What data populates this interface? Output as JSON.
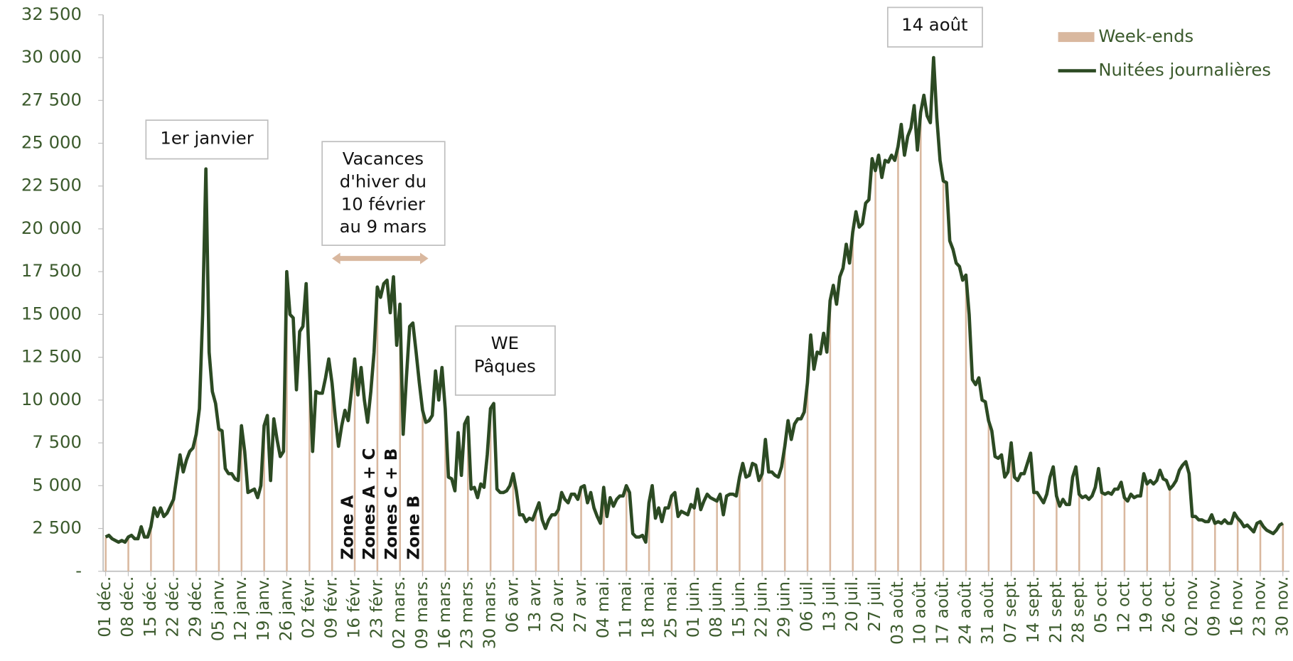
{
  "chart_data": {
    "type": "line",
    "categories": [
      "01 déc.",
      null,
      null,
      null,
      null,
      null,
      null,
      "08 déc.",
      null,
      null,
      null,
      null,
      null,
      null,
      "15 déc.",
      null,
      null,
      null,
      null,
      null,
      null,
      "22 déc.",
      null,
      null,
      null,
      null,
      null,
      null,
      "29 déc.",
      null,
      null,
      null,
      null,
      null,
      null,
      "05 janv.",
      null,
      null,
      null,
      null,
      null,
      null,
      "12 janv.",
      null,
      null,
      null,
      null,
      null,
      null,
      "19 janv.",
      null,
      null,
      null,
      null,
      null,
      null,
      "26 janv.",
      null,
      null,
      null,
      null,
      null,
      null,
      "02 févr.",
      null,
      null,
      null,
      null,
      null,
      null,
      "09 févr.",
      null,
      null,
      null,
      null,
      null,
      null,
      "16 févr.",
      null,
      null,
      null,
      null,
      null,
      null,
      "23 févr.",
      null,
      null,
      null,
      null,
      null,
      null,
      "02 mars.",
      null,
      null,
      null,
      null,
      null,
      null,
      "09 mars.",
      null,
      null,
      null,
      null,
      null,
      null,
      "16 mars.",
      null,
      null,
      null,
      null,
      null,
      null,
      "23 mars.",
      null,
      null,
      null,
      null,
      null,
      null,
      "30 mars.",
      null,
      null,
      null,
      null,
      null,
      null,
      "06 avr.",
      null,
      null,
      null,
      null,
      null,
      null,
      "13 avr.",
      null,
      null,
      null,
      null,
      null,
      null,
      "20 avr.",
      null,
      null,
      null,
      null,
      null,
      null,
      "27 avr.",
      null,
      null,
      null,
      null,
      null,
      null,
      "04 mai.",
      null,
      null,
      null,
      null,
      null,
      null,
      "11 mai.",
      null,
      null,
      null,
      null,
      null,
      null,
      "18 mai.",
      null,
      null,
      null,
      null,
      null,
      null,
      "25 mai.",
      null,
      null,
      null,
      null,
      null,
      null,
      "01 juin.",
      null,
      null,
      null,
      null,
      null,
      null,
      "08 juin.",
      null,
      null,
      null,
      null,
      null,
      null,
      "15 juin.",
      null,
      null,
      null,
      null,
      null,
      null,
      "22 juin.",
      null,
      null,
      null,
      null,
      null,
      null,
      "29 juin.",
      null,
      null,
      null,
      null,
      null,
      null,
      "06 juil.",
      null,
      null,
      null,
      null,
      null,
      null,
      "13 juil.",
      null,
      null,
      null,
      null,
      null,
      null,
      "20 juil.",
      null,
      null,
      null,
      null,
      null,
      null,
      "27 juil.",
      null,
      null,
      null,
      null,
      null,
      null,
      "03 août.",
      null,
      null,
      null,
      null,
      null,
      null,
      "10 août.",
      null,
      null,
      null,
      null,
      null,
      null,
      "17 août.",
      null,
      null,
      null,
      null,
      null,
      null,
      "24 août.",
      null,
      null,
      null,
      null,
      null,
      null,
      "31 août.",
      null,
      null,
      null,
      null,
      null,
      null,
      "07 sept.",
      null,
      null,
      null,
      null,
      null,
      null,
      "14 sept.",
      null,
      null,
      null,
      null,
      null,
      null,
      "21 sept.",
      null,
      null,
      null,
      null,
      null,
      null,
      "28 sept.",
      null,
      null,
      null,
      null,
      null,
      null,
      "05 oct.",
      null,
      null,
      null,
      null,
      null,
      null,
      "12 oct.",
      null,
      null,
      null,
      null,
      null,
      null,
      "19 oct.",
      null,
      null,
      null,
      null,
      null,
      null,
      "26 oct.",
      null,
      null,
      null,
      null,
      null,
      null,
      "02 nov.",
      null,
      null,
      null,
      null,
      null,
      null,
      "09 nov.",
      null,
      null,
      null,
      null,
      null,
      null,
      "16 nov.",
      null,
      null,
      null,
      null,
      null,
      null,
      "23 nov.",
      null,
      null,
      null,
      null,
      null,
      null,
      "30 nov."
    ],
    "series": [
      {
        "name": "Week-ends",
        "type": "bar",
        "color": "#d9b89f",
        "values": [
          2000,
          null,
          null,
          null,
          null,
          null,
          null,
          2000,
          null,
          null,
          null,
          null,
          null,
          null,
          2600,
          null,
          null,
          null,
          null,
          null,
          null,
          4200,
          null,
          null,
          null,
          null,
          null,
          null,
          8000,
          null,
          null,
          null,
          null,
          null,
          null,
          8300,
          null,
          null,
          null,
          null,
          null,
          null,
          8500,
          null,
          null,
          null,
          null,
          null,
          null,
          8500,
          null,
          null,
          null,
          null,
          null,
          null,
          17500,
          null,
          null,
          null,
          null,
          null,
          null,
          12000,
          null,
          null,
          null,
          null,
          null,
          null,
          11000,
          null,
          null,
          null,
          null,
          null,
          null,
          12400,
          null,
          null,
          null,
          null,
          null,
          null,
          16600,
          null,
          null,
          null,
          null,
          null,
          null,
          15600,
          null,
          null,
          null,
          null,
          null,
          null,
          9400,
          null,
          null,
          null,
          null,
          null,
          null,
          9500,
          null,
          null,
          null,
          null,
          null,
          null,
          9000,
          null,
          null,
          null,
          null,
          null,
          null,
          9500,
          null,
          null,
          null,
          null,
          null,
          null,
          5700,
          null,
          null,
          null,
          null,
          null,
          null,
          3500,
          null,
          null,
          null,
          null,
          null,
          null,
          3600,
          null,
          null,
          null,
          null,
          null,
          null,
          4900,
          null,
          null,
          null,
          null,
          null,
          null,
          4900,
          null,
          null,
          null,
          null,
          null,
          null,
          5000,
          null,
          null,
          null,
          null,
          null,
          null,
          4000,
          null,
          null,
          null,
          null,
          null,
          null,
          4400,
          null,
          null,
          null,
          null,
          null,
          null,
          3700,
          null,
          null,
          null,
          null,
          null,
          null,
          4100,
          null,
          null,
          null,
          null,
          null,
          null,
          5500,
          null,
          null,
          null,
          null,
          null,
          null,
          5700,
          null,
          null,
          null,
          null,
          null,
          null,
          7300,
          null,
          null,
          null,
          null,
          null,
          null,
          11000,
          null,
          null,
          null,
          null,
          null,
          null,
          15800,
          null,
          null,
          null,
          null,
          null,
          null,
          19800,
          null,
          null,
          null,
          null,
          null,
          null,
          23400,
          null,
          null,
          null,
          null,
          null,
          null,
          24800,
          null,
          null,
          null,
          null,
          null,
          null,
          26800,
          null,
          null,
          null,
          null,
          null,
          null,
          22800,
          null,
          null,
          null,
          null,
          null,
          null,
          17300,
          null,
          null,
          null,
          null,
          null,
          null,
          8800,
          null,
          null,
          null,
          null,
          null,
          null,
          7500,
          null,
          null,
          null,
          null,
          null,
          null,
          4600,
          null,
          null,
          null,
          null,
          null,
          null,
          4400,
          null,
          null,
          null,
          null,
          null,
          null,
          4500,
          null,
          null,
          null,
          null,
          null,
          null,
          4600,
          null,
          null,
          null,
          null,
          null,
          null,
          4300,
          null,
          null,
          null,
          null,
          null,
          null,
          5100,
          null,
          null,
          null,
          null,
          null,
          null,
          4800,
          null,
          null,
          null,
          null,
          null,
          null,
          3200,
          null,
          null,
          null,
          null,
          null,
          null,
          2800,
          null,
          null,
          null,
          null,
          null,
          null,
          3100,
          null,
          null,
          null,
          null,
          null,
          null,
          2900,
          null,
          null,
          null,
          null,
          null,
          null,
          2800
        ]
      },
      {
        "name": "Nuitées journalières",
        "type": "line",
        "color": "#2c4a23",
        "values": [
          2000,
          2100,
          1900,
          1800,
          1700,
          1800,
          1700,
          2000,
          2100,
          1900,
          1900,
          2600,
          2000,
          2000,
          2600,
          3700,
          3200,
          3700,
          3200,
          3400,
          3800,
          4200,
          5500,
          6800,
          5800,
          6500,
          7000,
          7200,
          8000,
          9500,
          15000,
          23500,
          12800,
          10500,
          9800,
          8300,
          8200,
          6000,
          5700,
          5700,
          5400,
          5300,
          8500,
          7000,
          4600,
          4700,
          4800,
          4300,
          5000,
          8500,
          9100,
          5300,
          8900,
          7700,
          6700,
          7000,
          17500,
          15000,
          14800,
          10600,
          14000,
          14300,
          16800,
          12000,
          7000,
          10500,
          10400,
          10400,
          11300,
          12400,
          11000,
          9000,
          7300,
          8500,
          9400,
          8800,
          10500,
          12400,
          10300,
          11900,
          10000,
          8700,
          10500,
          12800,
          16600,
          16000,
          16800,
          17000,
          15100,
          17200,
          13200,
          15600,
          8000,
          11300,
          14300,
          14500,
          12800,
          11000,
          9400,
          8700,
          8800,
          9100,
          11700,
          10000,
          11900,
          9500,
          5500,
          5400,
          4700,
          8100,
          5600,
          8600,
          9000,
          4800,
          4900,
          4300,
          5100,
          4900,
          6800,
          9500,
          9800,
          4800,
          4600,
          4600,
          4700,
          5000,
          5700,
          4700,
          3300,
          3300,
          2900,
          3100,
          3000,
          3500,
          4000,
          3000,
          2500,
          3000,
          3300,
          3300,
          3600,
          4600,
          4200,
          4000,
          4500,
          4500,
          4200,
          4900,
          5000,
          4000,
          4600,
          3700,
          3200,
          2800,
          4900,
          3200,
          4300,
          3800,
          4200,
          4400,
          4400,
          5000,
          4600,
          2200,
          2000,
          2000,
          2100,
          1700,
          4000,
          5000,
          3100,
          3700,
          2900,
          3700,
          3700,
          4400,
          4600,
          3200,
          3500,
          3400,
          3300,
          3900,
          3700,
          4800,
          3600,
          4100,
          4500,
          4300,
          4200,
          4100,
          4500,
          3300,
          4400,
          4500,
          4500,
          4400,
          5500,
          6300,
          5500,
          5600,
          6300,
          6200,
          5300,
          5700,
          7700,
          5800,
          5800,
          5600,
          5500,
          6100,
          7300,
          8800,
          7700,
          8600,
          8900,
          8900,
          9300,
          11000,
          13800,
          11800,
          12800,
          12700,
          13900,
          12800,
          15800,
          16700,
          15600,
          17200,
          17700,
          19100,
          18000,
          19800,
          21000,
          20100,
          20300,
          21500,
          21700,
          24100,
          23400,
          24300,
          23000,
          24000,
          23900,
          24300,
          24000,
          24800,
          26100,
          24300,
          25400,
          25900,
          27200,
          24600,
          26800,
          27800,
          26600,
          26200,
          30000,
          26500,
          24000,
          22800,
          22700,
          19300,
          18800,
          18000,
          17800,
          17000,
          17300,
          15000,
          11200,
          10900,
          11300,
          10000,
          9900,
          8800,
          8200,
          6700,
          6600,
          6800,
          5500,
          5800,
          7500,
          5500,
          5300,
          5700,
          5700,
          6300,
          6900,
          4600,
          4600,
          4300,
          4000,
          4500,
          5500,
          6100,
          4400,
          3800,
          4200,
          3900,
          3900,
          5500,
          6100,
          4500,
          4300,
          4400,
          4200,
          4400,
          4900,
          6000,
          4600,
          4500,
          4600,
          4500,
          4800,
          4800,
          5200,
          4300,
          4100,
          4500,
          4300,
          4400,
          4400,
          5700,
          5100,
          5300,
          5100,
          5300,
          5900,
          5400,
          5300,
          4800,
          5000,
          5300,
          5900,
          6200,
          6400,
          5700,
          3200,
          3200,
          3000,
          3000,
          2900,
          2900,
          3300,
          2800,
          2900,
          2800,
          3000,
          2800,
          2800,
          3400,
          3100,
          2900,
          2600,
          2700,
          2500,
          2300,
          2800,
          2900,
          2600,
          2400,
          2300,
          2200,
          2400,
          2700,
          2800
        ]
      }
    ],
    "ylim": [
      0,
      32500
    ],
    "yticks": [
      {
        "value": 0,
        "label": "-"
      },
      {
        "value": 2500,
        "label": "2 500"
      },
      {
        "value": 5000,
        "label": "5 000"
      },
      {
        "value": 7500,
        "label": "7 500"
      },
      {
        "value": 10000,
        "label": "10 000"
      },
      {
        "value": 12500,
        "label": "12 500"
      },
      {
        "value": 15000,
        "label": "15 000"
      },
      {
        "value": 17500,
        "label": "17 500"
      },
      {
        "value": 20000,
        "label": "20 000"
      },
      {
        "value": 22500,
        "label": "22 500"
      },
      {
        "value": 25000,
        "label": "25 000"
      },
      {
        "value": 27500,
        "label": "27 500"
      },
      {
        "value": 30000,
        "label": "30 000"
      },
      {
        "value": 32500,
        "label": "32 500"
      }
    ],
    "grid": false,
    "legend": "top-right",
    "annotations": [
      {
        "lines": [
          "1er janvier"
        ]
      },
      {
        "lines": [
          "Vacances",
          "d'hiver du",
          "10 février",
          "au 9 mars"
        ]
      },
      {
        "lines": [
          "WE",
          "Pâques"
        ]
      },
      {
        "lines": [
          "14 août"
        ]
      }
    ],
    "zone_labels": [
      "Zone A",
      "Zones A + C",
      "Zones C + B",
      "Zone B"
    ]
  }
}
